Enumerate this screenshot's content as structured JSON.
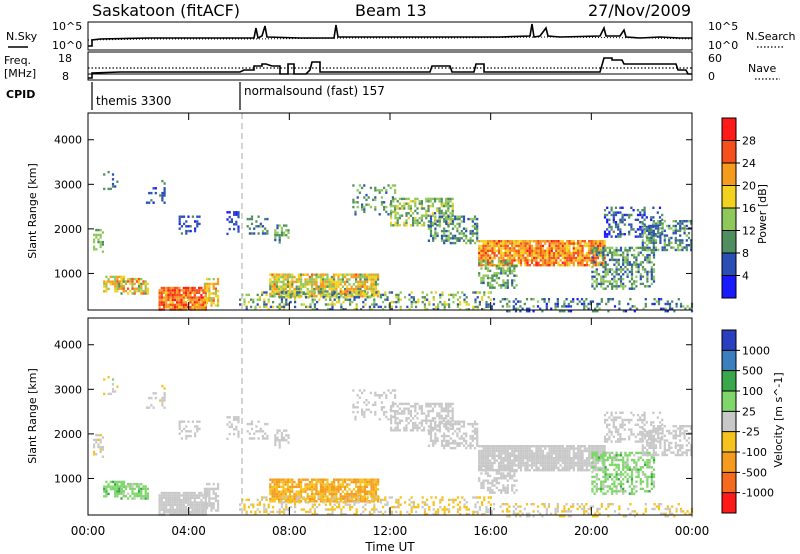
{
  "header": {
    "title_left": "Saskatoon (fitACF)",
    "title_mid": "Beam 13",
    "title_right": "27/Nov/2009",
    "nsky_label": "N.Sky",
    "nsearch_label": "N.Search",
    "nsky_hi": "10^5",
    "nsky_lo": "10^0",
    "freq_label_1": "Freq.",
    "freq_label_2": "[MHz]",
    "freq_hi": "18",
    "freq_lo": "8",
    "nave_label": "Nave",
    "nave_hi": "60",
    "nave_lo": "0",
    "cpid_label": "CPID",
    "cpid_1": "themis 3300",
    "cpid_2": "normalsound (fast) 157"
  },
  "chart_data": [
    {
      "type": "heatmap",
      "title": "",
      "ylabel": "Slant Range [km]",
      "xlabel": "",
      "ylim": [
        180,
        4600
      ],
      "yticks": [
        "1000",
        "2000",
        "3000",
        "4000"
      ],
      "colorbar_label": "Power [dB]",
      "colorbar_ticks": [
        "4",
        "8",
        "12",
        "16",
        "20",
        "24",
        "28"
      ],
      "colors": [
        "#1a1aff",
        "#2a4fb5",
        "#4f8f5f",
        "#8fc85a",
        "#f2d21e",
        "#f59b1e",
        "#f5501e",
        "#ff1a1a"
      ]
    },
    {
      "type": "heatmap",
      "title": "",
      "ylabel": "Slant Range [km]",
      "xlabel": "Time UT",
      "ylim": [
        180,
        4600
      ],
      "yticks": [
        "1000",
        "2000",
        "3000",
        "4000"
      ],
      "xticks": [
        "00:00",
        "04:00",
        "08:00",
        "12:00",
        "16:00",
        "20:00",
        "00:00"
      ],
      "colorbar_label": "Velocity [m s^-1]",
      "colorbar_ticks": [
        "1000",
        "500",
        "100",
        "25",
        "-25",
        "-100",
        "-500",
        "-1000"
      ],
      "colors": [
        "#2a3fc0",
        "#3c7fbf",
        "#3aa84a",
        "#7fd66a",
        "#c8c8c8",
        "#f5c21e",
        "#f59b1e",
        "#f56a1e",
        "#ff1a1a"
      ]
    }
  ],
  "scatter_regions": [
    {
      "t0": 0.2,
      "t1": 0.6,
      "r0": 1500,
      "r1": 2000,
      "p": 0.6,
      "pw": [
        0.3,
        0.5
      ],
      "vel": [
        0.45,
        0.6
      ]
    },
    {
      "t0": 0.6,
      "t1": 1.2,
      "r0": 2900,
      "r1": 3300,
      "p": 0.15,
      "pw": [
        0.1,
        0.3
      ],
      "vel": [
        0.4,
        0.6
      ]
    },
    {
      "t0": 0.6,
      "t1": 1.4,
      "r0": 600,
      "r1": 950,
      "p": 0.6,
      "pw": [
        0.4,
        0.8
      ],
      "vel": [
        0.3,
        0.4
      ]
    },
    {
      "t0": 1.2,
      "t1": 2.4,
      "r0": 550,
      "r1": 900,
      "p": 0.7,
      "pw": [
        0.3,
        0.9
      ],
      "vel": [
        0.3,
        0.45
      ]
    },
    {
      "t0": 2.3,
      "t1": 3.0,
      "r0": 2600,
      "r1": 3100,
      "p": 0.25,
      "pw": [
        0.05,
        0.3
      ],
      "vel": [
        0.45,
        0.6
      ]
    },
    {
      "t0": 2.8,
      "t1": 4.7,
      "r0": 200,
      "r1": 700,
      "p": 0.9,
      "pw": [
        0.6,
        1.0
      ],
      "vel": [
        0.45,
        0.55
      ]
    },
    {
      "t0": 4.6,
      "t1": 5.2,
      "r0": 300,
      "r1": 900,
      "p": 0.6,
      "pw": [
        0.4,
        0.8
      ],
      "vel": [
        0.45,
        0.55
      ]
    },
    {
      "t0": 3.6,
      "t1": 4.4,
      "r0": 1900,
      "r1": 2300,
      "p": 0.4,
      "pw": [
        0.0,
        0.3
      ],
      "vel": [
        0.45,
        0.55
      ]
    },
    {
      "t0": 5.5,
      "t1": 6.0,
      "r0": 1900,
      "r1": 2400,
      "p": 0.35,
      "pw": [
        0.0,
        0.2
      ],
      "vel": [
        0.45,
        0.55
      ]
    },
    {
      "t0": 6.3,
      "t1": 7.1,
      "r0": 1900,
      "r1": 2300,
      "p": 0.35,
      "pw": [
        0.1,
        0.4
      ],
      "vel": [
        0.45,
        0.55
      ]
    },
    {
      "t0": 7.4,
      "t1": 8.0,
      "r0": 1700,
      "r1": 2100,
      "p": 0.35,
      "pw": [
        0.2,
        0.5
      ],
      "vel": [
        0.45,
        0.55
      ]
    },
    {
      "t0": 7.2,
      "t1": 11.5,
      "r0": 500,
      "r1": 1000,
      "p": 0.8,
      "pw": [
        0.3,
        0.8
      ],
      "vel": [
        0.6,
        0.8
      ]
    },
    {
      "t0": 6.0,
      "t1": 16.0,
      "r0": 180,
      "r1": 600,
      "p": 0.35,
      "pw": [
        0.1,
        0.6
      ],
      "vel": [
        0.5,
        0.65
      ]
    },
    {
      "t0": 10.5,
      "t1": 12.2,
      "r0": 2300,
      "r1": 3000,
      "p": 0.3,
      "pw": [
        0.1,
        0.5
      ],
      "vel": [
        0.45,
        0.55
      ]
    },
    {
      "t0": 12.0,
      "t1": 14.5,
      "r0": 2100,
      "r1": 2700,
      "p": 0.5,
      "pw": [
        0.2,
        0.6
      ],
      "vel": [
        0.45,
        0.55
      ]
    },
    {
      "t0": 13.5,
      "t1": 15.5,
      "r0": 1700,
      "r1": 2300,
      "p": 0.5,
      "pw": [
        0.1,
        0.5
      ],
      "vel": [
        0.45,
        0.55
      ]
    },
    {
      "t0": 15.5,
      "t1": 20.5,
      "r0": 1200,
      "r1": 1750,
      "p": 0.9,
      "pw": [
        0.5,
        0.95
      ],
      "vel": [
        0.45,
        0.55
      ]
    },
    {
      "t0": 15.5,
      "t1": 17.0,
      "r0": 700,
      "r1": 1300,
      "p": 0.5,
      "pw": [
        0.2,
        0.5
      ],
      "vel": [
        0.45,
        0.55
      ]
    },
    {
      "t0": 20.0,
      "t1": 22.5,
      "r0": 650,
      "r1": 1600,
      "p": 0.5,
      "pw": [
        0.1,
        0.5
      ],
      "vel": [
        0.3,
        0.45
      ]
    },
    {
      "t0": 20.5,
      "t1": 22.8,
      "r0": 1800,
      "r1": 2500,
      "p": 0.35,
      "pw": [
        0.0,
        0.3
      ],
      "vel": [
        0.45,
        0.55
      ]
    },
    {
      "t0": 22.0,
      "t1": 24.0,
      "r0": 1500,
      "r1": 2200,
      "p": 0.5,
      "pw": [
        0.1,
        0.5
      ],
      "vel": [
        0.45,
        0.55
      ]
    },
    {
      "t0": 16.0,
      "t1": 24.0,
      "r0": 180,
      "r1": 450,
      "p": 0.3,
      "pw": [
        0.0,
        0.4
      ],
      "vel": [
        0.45,
        0.65
      ]
    }
  ]
}
